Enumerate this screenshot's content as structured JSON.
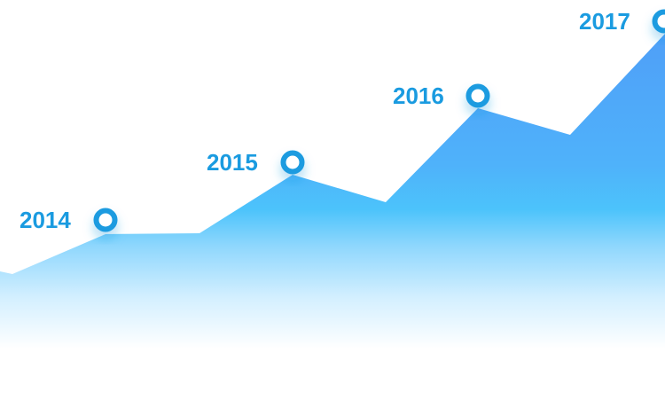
{
  "chart_data": {
    "type": "area",
    "x": [
      "2014",
      "2015",
      "2016",
      "2017"
    ],
    "series": [
      {
        "values": [
          2014,
          2015,
          2016,
          2017
        ]
      }
    ],
    "colors": {
      "area_top": "#4f9ff8",
      "area_mid": "#4cc3fb",
      "area_fade": "#ffffff",
      "marker_ring": "#1a9be0",
      "marker_fill": "#ffffff",
      "label": "#1a9be0"
    },
    "grid": false,
    "legend": "none"
  }
}
